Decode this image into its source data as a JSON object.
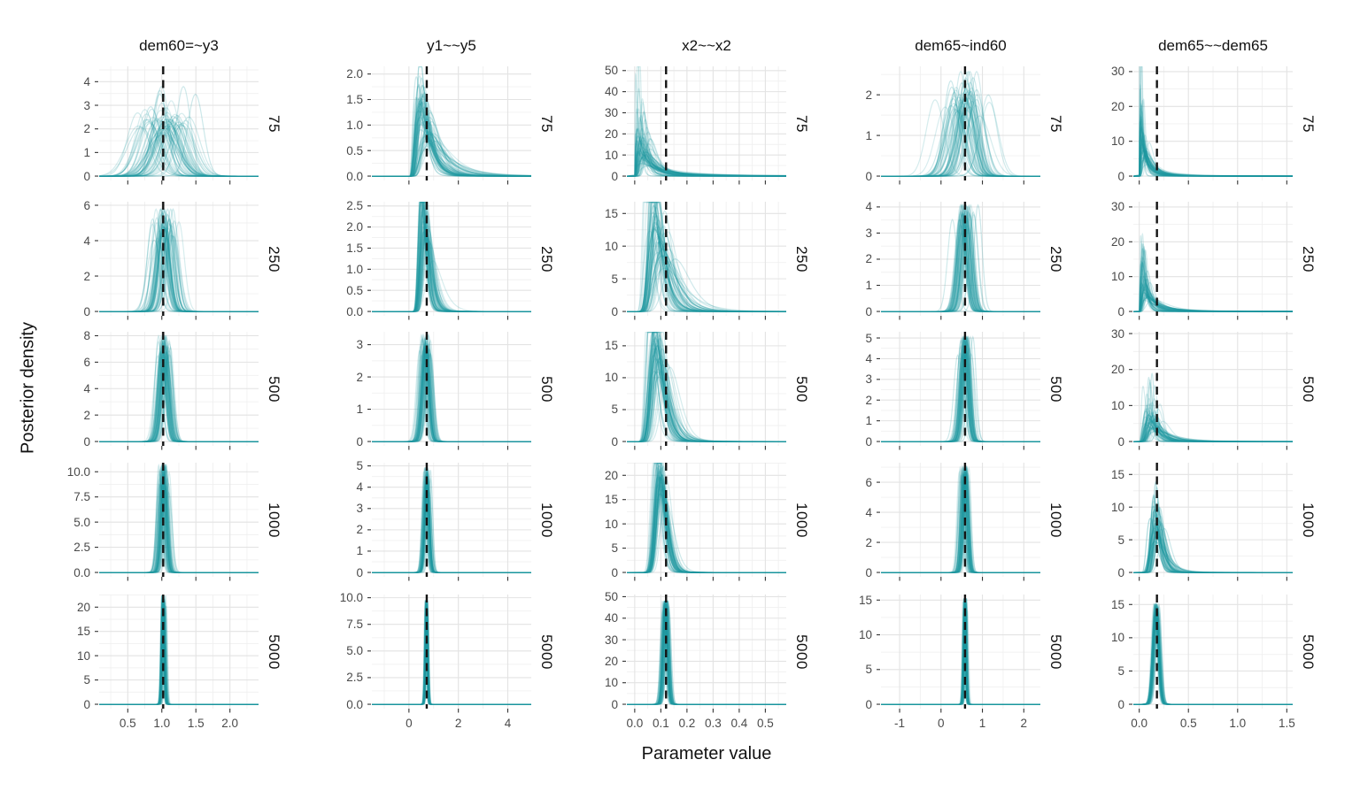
{
  "figure": {
    "y_axis_title": "Posterior density",
    "x_axis_title": "Parameter value"
  },
  "chart_data": {
    "type": "line",
    "subtype": "faceted posterior density curves (simulation replications) with dashed true-value line",
    "title": "",
    "xlabel": "Parameter value",
    "ylabel": "Posterior density",
    "legend": "none",
    "grid": "major and minor, light gray on white",
    "row_facet_labels": [
      "75",
      "250",
      "500",
      "1000",
      "5000"
    ],
    "curve_color": "#1f99a1",
    "curve_opacity": 0.17,
    "true_value_line_color": "#141414",
    "columns": [
      {
        "title": "dem60=~y3",
        "true_value": 1.02,
        "xlim": [
          0.08,
          2.42
        ],
        "x_tick_values": [
          0.5,
          1.0,
          1.5,
          2.0
        ],
        "x_tick_labels": [
          "0.5",
          "1.0",
          "1.5",
          "2.0"
        ],
        "x_minor_step": 0.25,
        "rows": [
          {
            "n": "75",
            "ylim_top": 4.65,
            "y_tick_values": [
              0,
              1,
              2,
              3,
              4
            ],
            "y_tick_labels": [
              "0",
              "1",
              "2",
              "3",
              "4"
            ],
            "curves": {
              "shape": "normal",
              "n": 60,
              "c": 1.05,
              "c_sd": 0.17,
              "s": 0.16,
              "s_sd": 0.03,
              "s_min": 0.105
            }
          },
          {
            "n": "250",
            "ylim_top": 6.2,
            "y_tick_values": [
              0,
              2,
              4,
              6
            ],
            "y_tick_labels": [
              "0",
              "2",
              "4",
              "6"
            ],
            "curves": {
              "shape": "normal",
              "n": 60,
              "c": 1.04,
              "c_sd": 0.075,
              "s": 0.078,
              "s_sd": 0.01,
              "s_min": 0.069
            }
          },
          {
            "n": "500",
            "ylim_top": 8.3,
            "y_tick_values": [
              0,
              2,
              4,
              6,
              8
            ],
            "y_tick_labels": [
              "0",
              "2",
              "4",
              "6",
              "8"
            ],
            "curves": {
              "shape": "normal",
              "n": 60,
              "c": 1.03,
              "c_sd": 0.05,
              "s": 0.057,
              "s_sd": 0.007,
              "s_min": 0.05
            }
          },
          {
            "n": "1000",
            "ylim_top": 10.9,
            "y_tick_values": [
              0,
              2.5,
              5,
              7.5,
              10
            ],
            "y_tick_labels": [
              "0.0",
              "2.5",
              "5.0",
              "7.5",
              "10.0"
            ],
            "curves": {
              "shape": "normal",
              "n": 60,
              "c": 1.02,
              "c_sd": 0.035,
              "s": 0.0405,
              "s_sd": 0.004,
              "s_min": 0.0375
            }
          },
          {
            "n": "5000",
            "ylim_top": 22.6,
            "y_tick_values": [
              0,
              5,
              10,
              15,
              20
            ],
            "y_tick_labels": [
              "0",
              "5",
              "10",
              "15",
              "20"
            ],
            "curves": {
              "shape": "normal",
              "n": 60,
              "c": 1.02,
              "c_sd": 0.015,
              "s": 0.0185,
              "s_sd": 0.0012,
              "s_min": 0.0178
            }
          }
        ]
      },
      {
        "title": "y1~~y5",
        "true_value": 0.72,
        "xlim": [
          -1.5,
          4.95
        ],
        "x_tick_values": [
          0,
          2,
          4
        ],
        "x_tick_labels": [
          "0",
          "2",
          "4"
        ],
        "x_minor_step": 1,
        "rows": [
          {
            "n": "75",
            "ylim_top": 2.15,
            "y_tick_values": [
              0,
              0.5,
              1,
              1.5,
              2
            ],
            "y_tick_labels": [
              "0.0",
              "0.5",
              "1.0",
              "1.5",
              "2.0"
            ],
            "curves": {
              "shape": "lognormal",
              "n": 70,
              "mu": -0.29,
              "mu_sd": 0.25,
              "s": 0.5,
              "s_sd": 0.1,
              "s_min": 0.35
            }
          },
          {
            "n": "250",
            "ylim_top": 2.6,
            "y_tick_values": [
              0,
              0.5,
              1,
              1.5,
              2,
              2.5
            ],
            "y_tick_labels": [
              "0.0",
              "0.5",
              "1.0",
              "1.5",
              "2.0",
              "2.5"
            ],
            "curves": {
              "shape": "lognormal",
              "n": 65,
              "mu": -0.385,
              "mu_sd": 0.17,
              "s": 0.27,
              "s_sd": 0.04,
              "s_min": 0.18
            }
          },
          {
            "n": "500",
            "ylim_top": 3.4,
            "y_tick_values": [
              0,
              1,
              2,
              3
            ],
            "y_tick_labels": [
              "0",
              "1",
              "2",
              "3"
            ],
            "curves": {
              "shape": "normal",
              "n": 60,
              "c": 0.7,
              "c_sd": 0.09,
              "s": 0.132,
              "s_sd": 0.013,
              "s_min": 0.121
            }
          },
          {
            "n": "1000",
            "ylim_top": 5.15,
            "y_tick_values": [
              0,
              1,
              2,
              3,
              4,
              5
            ],
            "y_tick_labels": [
              "0",
              "1",
              "2",
              "3",
              "4",
              "5"
            ],
            "curves": {
              "shape": "normal",
              "n": 60,
              "c": 0.71,
              "c_sd": 0.055,
              "s": 0.0875,
              "s_sd": 0.008,
              "s_min": 0.081
            }
          },
          {
            "n": "5000",
            "ylim_top": 10.3,
            "y_tick_values": [
              0,
              2.5,
              5,
              7.5,
              10
            ],
            "y_tick_labels": [
              "0.0",
              "2.5",
              "5.0",
              "7.5",
              "10.0"
            ],
            "curves": {
              "shape": "normal",
              "n": 60,
              "c": 0.71,
              "c_sd": 0.022,
              "s": 0.042,
              "s_sd": 0.0028,
              "s_min": 0.0408
            }
          }
        ]
      },
      {
        "title": "x2~~x2",
        "true_value": 0.12,
        "xlim": [
          -0.03,
          0.58
        ],
        "x_tick_values": [
          0,
          0.1,
          0.2,
          0.3,
          0.4,
          0.5
        ],
        "x_tick_labels": [
          "0.0",
          "0.1",
          "0.2",
          "0.3",
          "0.4",
          "0.5"
        ],
        "x_minor_step": 0.05,
        "rows": [
          {
            "n": "75",
            "ylim_top": 52,
            "y_tick_values": [
              0,
              10,
              20,
              30,
              40,
              50
            ],
            "y_tick_labels": [
              "0",
              "10",
              "20",
              "30",
              "40",
              "50"
            ],
            "curves": {
              "shape": "lognormal",
              "n": 75,
              "mu": -3.1,
              "mu_sd": 0.45,
              "s": 0.8,
              "s_sd": 0.3,
              "s_min": 0.35
            }
          },
          {
            "n": "250",
            "ylim_top": 16.8,
            "y_tick_values": [
              0,
              5,
              10,
              15
            ],
            "y_tick_labels": [
              "0",
              "5",
              "10",
              "15"
            ],
            "curves": {
              "shape": "lognormal",
              "n": 65,
              "mu": -2.35,
              "mu_sd": 0.22,
              "s": 0.33,
              "s_sd": 0.06,
              "s_min": 0.22
            }
          },
          {
            "n": "500",
            "ylim_top": 17.2,
            "y_tick_values": [
              0,
              5,
              10,
              15
            ],
            "y_tick_labels": [
              "0",
              "5",
              "10",
              "15"
            ],
            "curves": {
              "shape": "lognormal",
              "n": 65,
              "mu": -2.4,
              "mu_sd": 0.16,
              "s": 0.3,
              "s_sd": 0.045,
              "s_min": 0.21
            }
          },
          {
            "n": "1000",
            "ylim_top": 22.6,
            "y_tick_values": [
              0,
              5,
              10,
              15,
              20
            ],
            "y_tick_labels": [
              "0",
              "5",
              "10",
              "15",
              "20"
            ],
            "curves": {
              "shape": "lognormal",
              "n": 65,
              "mu": -2.28,
              "mu_sd": 0.09,
              "s": 0.2,
              "s_sd": 0.025,
              "s_min": 0.15
            }
          },
          {
            "n": "5000",
            "ylim_top": 51,
            "y_tick_values": [
              0,
              10,
              20,
              30,
              40,
              50
            ],
            "y_tick_labels": [
              "0",
              "10",
              "20",
              "30",
              "40",
              "50"
            ],
            "curves": {
              "shape": "normal",
              "n": 60,
              "c": 0.118,
              "c_sd": 0.005,
              "s": 0.0085,
              "s_sd": 0.0005,
              "s_min": 0.0083
            }
          }
        ]
      },
      {
        "title": "dem65~ind60",
        "true_value": 0.58,
        "xlim": [
          -1.45,
          2.4
        ],
        "x_tick_values": [
          -1,
          0,
          1,
          2
        ],
        "x_tick_labels": [
          "-1",
          "0",
          "1",
          "2"
        ],
        "x_minor_step": 0.5,
        "rows": [
          {
            "n": "75",
            "ylim_top": 2.7,
            "y_tick_values": [
              0,
              1,
              2
            ],
            "y_tick_labels": [
              "0",
              "1",
              "2"
            ],
            "curves": {
              "shape": "normal",
              "n": 60,
              "c": 0.56,
              "c_sd": 0.21,
              "s": 0.2,
              "s_sd": 0.035,
              "s_min": 0.155
            }
          },
          {
            "n": "250",
            "ylim_top": 4.2,
            "y_tick_values": [
              0,
              1,
              2,
              3,
              4
            ],
            "y_tick_labels": [
              "0",
              "1",
              "2",
              "3",
              "4"
            ],
            "curves": {
              "shape": "normal",
              "n": 60,
              "c": 0.58,
              "c_sd": 0.1,
              "s": 0.108,
              "s_sd": 0.011,
              "s_min": 0.098
            }
          },
          {
            "n": "500",
            "ylim_top": 5.3,
            "y_tick_values": [
              0,
              1,
              2,
              3,
              4,
              5
            ],
            "y_tick_labels": [
              "0",
              "1",
              "2",
              "3",
              "4",
              "5"
            ],
            "curves": {
              "shape": "normal",
              "n": 60,
              "c": 0.58,
              "c_sd": 0.07,
              "s": 0.082,
              "s_sd": 0.008,
              "s_min": 0.079
            }
          },
          {
            "n": "1000",
            "ylim_top": 7.3,
            "y_tick_values": [
              0,
              2,
              4,
              6
            ],
            "y_tick_labels": [
              "0",
              "2",
              "4",
              "6"
            ],
            "curves": {
              "shape": "normal",
              "n": 60,
              "c": 0.58,
              "c_sd": 0.05,
              "s": 0.058,
              "s_sd": 0.004,
              "s_min": 0.057
            }
          },
          {
            "n": "5000",
            "ylim_top": 15.8,
            "y_tick_values": [
              0,
              5,
              10,
              15
            ],
            "y_tick_labels": [
              "0",
              "5",
              "10",
              "15"
            ],
            "curves": {
              "shape": "normal",
              "n": 60,
              "c": 0.58,
              "c_sd": 0.02,
              "s": 0.027,
              "s_sd": 0.0015,
              "s_min": 0.0262
            }
          }
        ]
      },
      {
        "title": "dem65~~dem65",
        "true_value": 0.18,
        "xlim": [
          -0.06,
          1.56
        ],
        "x_tick_values": [
          0,
          0.5,
          1.0,
          1.5
        ],
        "x_tick_labels": [
          "0.0",
          "0.5",
          "1.0",
          "1.5"
        ],
        "x_minor_step": 0.25,
        "rows": [
          {
            "n": "75",
            "ylim_top": 31.5,
            "y_tick_values": [
              0,
              10,
              20,
              30
            ],
            "y_tick_labels": [
              "0",
              "10",
              "20",
              "30"
            ],
            "curves": {
              "shape": "lognormal",
              "n": 75,
              "mu": -2.8,
              "mu_sd": 0.45,
              "s": 0.8,
              "s_sd": 0.28,
              "s_min": 0.38
            }
          },
          {
            "n": "250",
            "ylim_top": 31.5,
            "y_tick_values": [
              0,
              10,
              20,
              30
            ],
            "y_tick_labels": [
              "0",
              "10",
              "20",
              "30"
            ],
            "curves": {
              "shape": "lognormal",
              "n": 70,
              "mu": -2.35,
              "mu_sd": 0.4,
              "s": 0.75,
              "s_sd": 0.22,
              "s_min": 0.3
            }
          },
          {
            "n": "500",
            "ylim_top": 30.5,
            "y_tick_values": [
              0,
              10,
              20,
              30
            ],
            "y_tick_labels": [
              "0",
              "10",
              "20",
              "30"
            ],
            "curves": {
              "shape": "lognormal",
              "n": 70,
              "mu": -1.85,
              "mu_sd": 0.3,
              "s": 0.48,
              "s_sd": 0.18,
              "s_min": 0.16
            }
          },
          {
            "n": "1000",
            "ylim_top": 16.8,
            "y_tick_values": [
              0,
              5,
              10,
              15
            ],
            "y_tick_labels": [
              "0",
              "5",
              "10",
              "15"
            ],
            "curves": {
              "shape": "lognormal",
              "n": 65,
              "mu": -1.68,
              "mu_sd": 0.16,
              "s": 0.3,
              "s_sd": 0.09,
              "s_min": 0.17
            }
          },
          {
            "n": "5000",
            "ylim_top": 16.5,
            "y_tick_values": [
              0,
              5,
              10,
              15
            ],
            "y_tick_labels": [
              "0",
              "5",
              "10",
              "15"
            ],
            "curves": {
              "shape": "normal",
              "n": 60,
              "c": 0.175,
              "c_sd": 0.012,
              "s": 0.0275,
              "s_sd": 0.0015,
              "s_min": 0.0265
            }
          }
        ]
      }
    ],
    "style": {
      "grid_major_color": "#e3e3e3",
      "grid_minor_color": "#f0f0f0",
      "tick_mark_color": "#333333",
      "tick_label_color": "#4a4a4a"
    }
  }
}
